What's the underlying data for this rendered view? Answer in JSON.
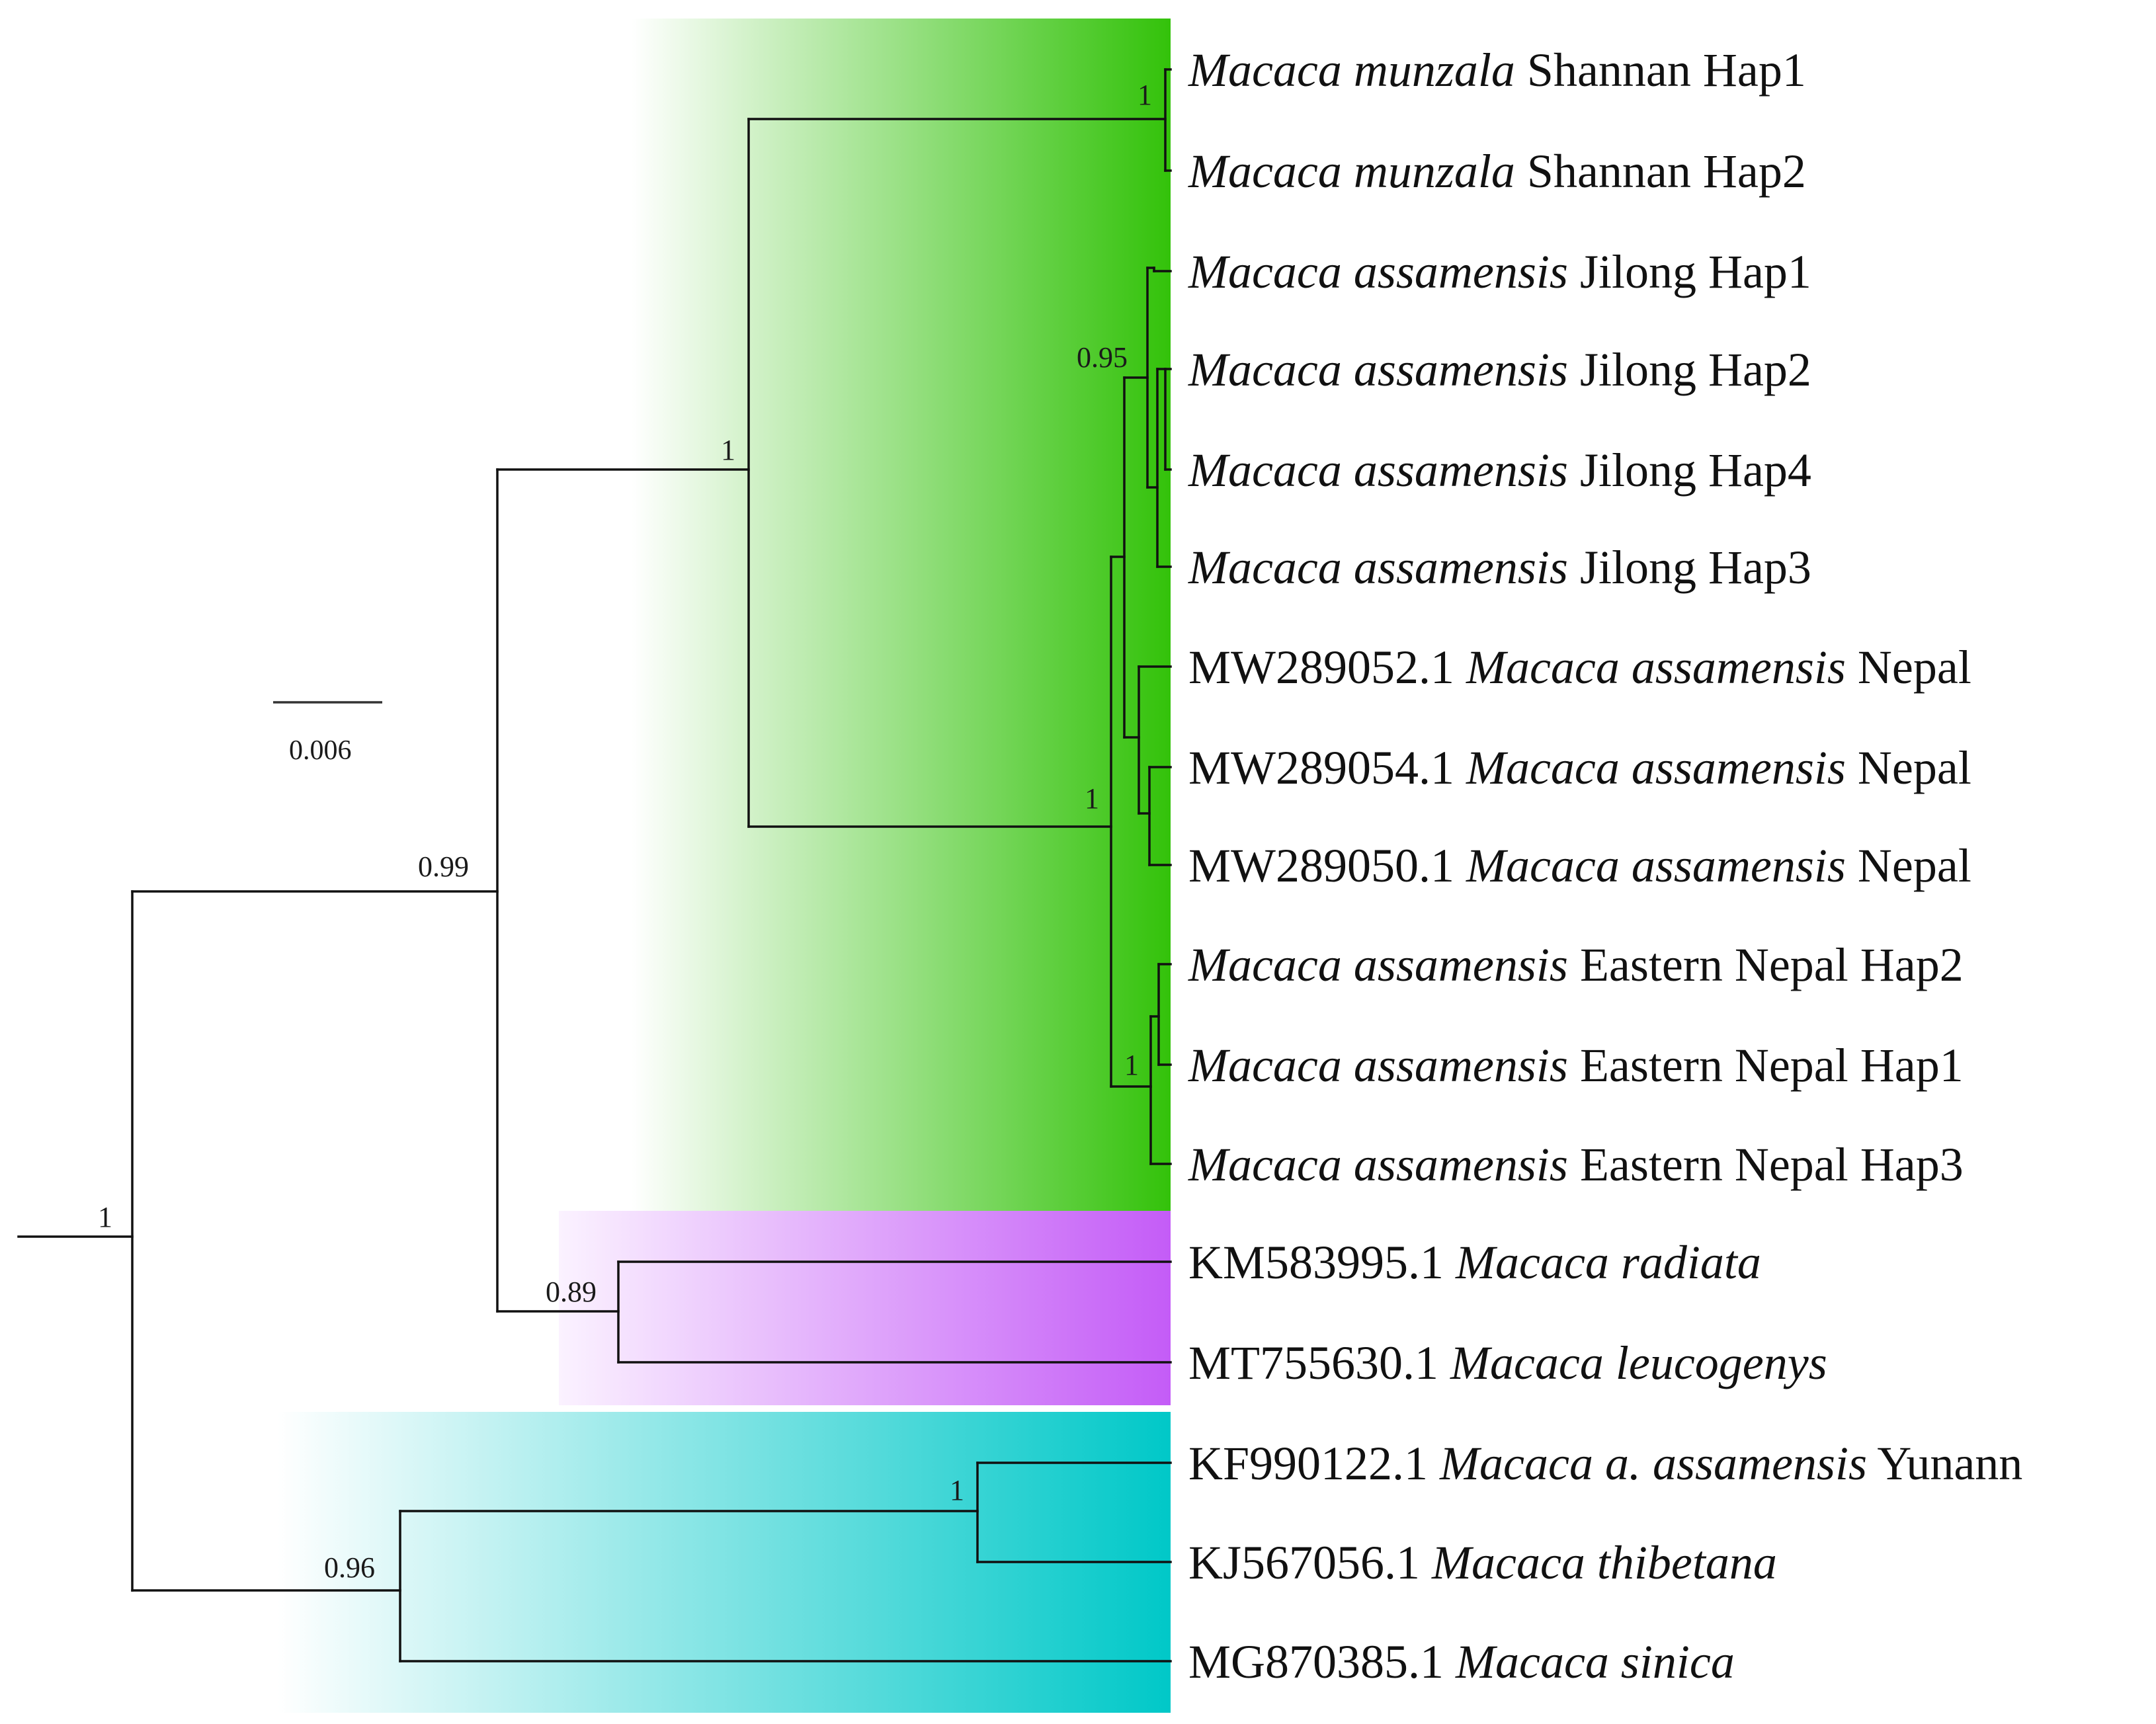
{
  "scale_bar": {
    "label": "0.006"
  },
  "clade_colors": {
    "green": "#33c20a",
    "purple": "#c45cf7",
    "cyan": "#00c8c8"
  },
  "tips": [
    {
      "prefix": "",
      "species": "Macaca munzala",
      "suffix": " Shannan Hap1",
      "clade": "green"
    },
    {
      "prefix": "",
      "species": "Macaca munzala",
      "suffix": " Shannan Hap2",
      "clade": "green"
    },
    {
      "prefix": "",
      "species": "Macaca assamensis",
      "suffix": " Jilong Hap1",
      "clade": "green"
    },
    {
      "prefix": "",
      "species": "Macaca assamensis",
      "suffix": " Jilong Hap2",
      "clade": "green"
    },
    {
      "prefix": "",
      "species": "Macaca assamensis",
      "suffix": " Jilong Hap4",
      "clade": "green"
    },
    {
      "prefix": "",
      "species": "Macaca assamensis",
      "suffix": " Jilong Hap3",
      "clade": "green"
    },
    {
      "prefix": "MW289052.1 ",
      "species": "Macaca assamensis",
      "suffix": " Nepal",
      "clade": "green"
    },
    {
      "prefix": "MW289054.1 ",
      "species": "Macaca assamensis",
      "suffix": " Nepal",
      "clade": "green"
    },
    {
      "prefix": "MW289050.1 ",
      "species": "Macaca assamensis",
      "suffix": " Nepal",
      "clade": "green"
    },
    {
      "prefix": "",
      "species": "Macaca assamensis",
      "suffix": " Eastern Nepal Hap2",
      "clade": "green"
    },
    {
      "prefix": "",
      "species": "Macaca assamensis",
      "suffix": " Eastern Nepal Hap1",
      "clade": "green"
    },
    {
      "prefix": "",
      "species": "Macaca assamensis",
      "suffix": " Eastern Nepal Hap3",
      "clade": "green"
    },
    {
      "prefix": "KM583995.1 ",
      "species": "Macaca radiata",
      "suffix": "",
      "clade": "purple"
    },
    {
      "prefix": "MT755630.1 ",
      "species": "Macaca leucogenys",
      "suffix": "",
      "clade": "purple"
    },
    {
      "prefix": "KF990122.1 ",
      "species": "Macaca a. assamensis",
      "suffix": " Yunann",
      "clade": "cyan"
    },
    {
      "prefix": "KJ567056.1 ",
      "species": "Macaca thibetana",
      "suffix": "",
      "clade": "cyan"
    },
    {
      "prefix": "MG870385.1 ",
      "species": "Macaca sinica",
      "suffix": "",
      "clade": "cyan"
    }
  ],
  "support_values": [
    {
      "node": "root",
      "label": "1"
    },
    {
      "node": "main-ingroup",
      "label": "0.99"
    },
    {
      "node": "munzala-assamensis",
      "label": "1"
    },
    {
      "node": "munzala",
      "label": "1"
    },
    {
      "node": "jilong",
      "label": "0.95"
    },
    {
      "node": "assamensis",
      "label": "1"
    },
    {
      "node": "eastern-nepal",
      "label": "1"
    },
    {
      "node": "radiata-leucogenys",
      "label": "0.89"
    },
    {
      "node": "cyan-clade",
      "label": "0.96"
    },
    {
      "node": "yunann-thibetana",
      "label": "1"
    }
  ]
}
